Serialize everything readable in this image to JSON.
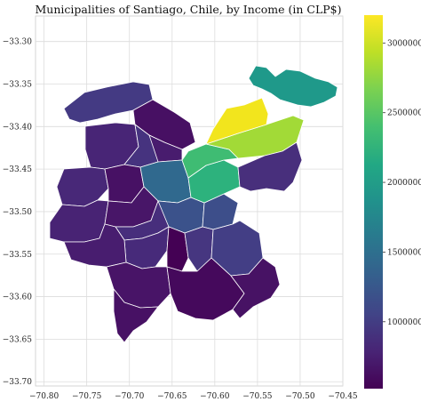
{
  "figure": {
    "title": "Municipalities of Santiago, Chile, by Income (in CLP$)"
  },
  "map": {
    "x_axis": {
      "range": [
        -70.81,
        -70.45
      ],
      "ticks": [
        -70.8,
        -70.75,
        -70.7,
        -70.65,
        -70.6,
        -70.55,
        -70.5,
        -70.45
      ],
      "tick_labels": [
        "−70.80",
        "−70.75",
        "−70.70",
        "−70.65",
        "−70.60",
        "−70.55",
        "−70.50",
        "−70.45"
      ]
    },
    "y_axis": {
      "range": [
        -33.705,
        -33.27
      ],
      "ticks": [
        -33.3,
        -33.35,
        -33.4,
        -33.45,
        -33.5,
        -33.55,
        -33.6,
        -33.65,
        -33.7
      ],
      "tick_labels": [
        "−33.30",
        "−33.35",
        "−33.40",
        "−33.45",
        "−33.50",
        "−33.55",
        "−33.60",
        "−33.65",
        "−33.70"
      ]
    },
    "grid": true,
    "edge_color": "#ffffff"
  },
  "colorbar": {
    "colormap": "viridis",
    "range": [
      520000,
      3200000
    ],
    "ticks": [
      1000000,
      1500000,
      2000000,
      2500000,
      3000000
    ],
    "tick_labels": [
      "1000000",
      "1500000",
      "2000000",
      "2500000",
      "3000000"
    ]
  }
}
